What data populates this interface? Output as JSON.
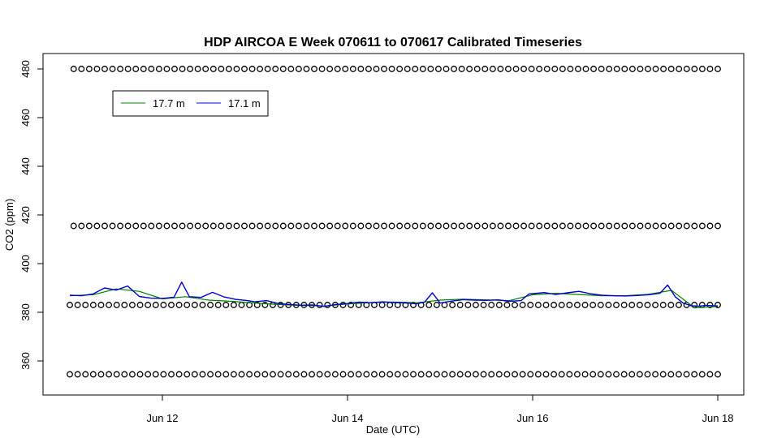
{
  "chart_data": {
    "type": "line",
    "title": "HDP AIRCOA E  Week 070611 to 070617  Calibrated Timeseries",
    "xlabel": "Date (UTC)",
    "ylabel": "CO2 (ppm)",
    "xlim": [
      "2007-06-11T00:00",
      "2007-06-18T00:00"
    ],
    "ylim": [
      348,
      482
    ],
    "x_ticks": [
      {
        "x": "2007-06-12T00:00",
        "label": "Jun 12"
      },
      {
        "x": "2007-06-14T00:00",
        "label": "Jun 14"
      },
      {
        "x": "2007-06-16T00:00",
        "label": "Jun 16"
      },
      {
        "x": "2007-06-18T00:00",
        "label": "Jun 18"
      }
    ],
    "y_ticks": [
      360,
      380,
      400,
      420,
      440,
      460,
      480
    ],
    "grid": false,
    "legend": {
      "position": "top-left",
      "entries": [
        {
          "label": "17.7 m",
          "color": "#008000"
        },
        {
          "label": "17.1 m",
          "color": "#0000cc"
        }
      ]
    },
    "series": [
      {
        "name": "17.7 m",
        "color": "#008000",
        "points": [
          [
            "2007-06-11T00:00",
            386.8
          ],
          [
            "2007-06-11T06:00",
            387.2
          ],
          [
            "2007-06-11T12:00",
            389.6
          ],
          [
            "2007-06-11T18:00",
            388.6
          ],
          [
            "2007-06-12T00:00",
            385.5
          ],
          [
            "2007-06-12T06:00",
            386.4
          ],
          [
            "2007-06-12T12:00",
            385.0
          ],
          [
            "2007-06-12T18:00",
            384.5
          ],
          [
            "2007-06-13T00:00",
            383.8
          ],
          [
            "2007-06-13T06:00",
            383.2
          ],
          [
            "2007-06-13T12:00",
            382.8
          ],
          [
            "2007-06-13T18:00",
            382.6
          ],
          [
            "2007-06-14T00:00",
            383.4
          ],
          [
            "2007-06-14T06:00",
            384.0
          ],
          [
            "2007-06-14T12:00",
            384.2
          ],
          [
            "2007-06-14T18:00",
            383.9
          ],
          [
            "2007-06-15T00:00",
            385.0
          ],
          [
            "2007-06-15T06:00",
            385.4
          ],
          [
            "2007-06-15T12:00",
            385.1
          ],
          [
            "2007-06-15T18:00",
            384.8
          ],
          [
            "2007-06-16T00:00",
            387.2
          ],
          [
            "2007-06-16T06:00",
            387.8
          ],
          [
            "2007-06-16T12:00",
            387.3
          ],
          [
            "2007-06-16T18:00",
            386.8
          ],
          [
            "2007-06-17T00:00",
            386.8
          ],
          [
            "2007-06-17T06:00",
            387.4
          ],
          [
            "2007-06-17T12:00",
            389.0
          ],
          [
            "2007-06-17T18:00",
            381.8
          ],
          [
            "2007-06-18T00:00",
            382.4
          ]
        ]
      },
      {
        "name": "17.1 m",
        "color": "#0000cc",
        "points": [
          [
            "2007-06-11T00:00",
            387.0
          ],
          [
            "2007-06-11T03:00",
            386.8
          ],
          [
            "2007-06-11T06:00",
            387.5
          ],
          [
            "2007-06-11T09:00",
            390.0
          ],
          [
            "2007-06-11T12:00",
            389.1
          ],
          [
            "2007-06-11T15:00",
            390.8
          ],
          [
            "2007-06-11T18:00",
            386.5
          ],
          [
            "2007-06-11T21:00",
            385.8
          ],
          [
            "2007-06-12T00:00",
            385.7
          ],
          [
            "2007-06-12T03:00",
            386.2
          ],
          [
            "2007-06-12T05:00",
            392.4
          ],
          [
            "2007-06-12T07:00",
            386.4
          ],
          [
            "2007-06-12T10:00",
            386.1
          ],
          [
            "2007-06-12T13:00",
            388.2
          ],
          [
            "2007-06-12T16:00",
            386.3
          ],
          [
            "2007-06-12T19:00",
            385.3
          ],
          [
            "2007-06-12T22:00",
            384.8
          ],
          [
            "2007-06-13T00:00",
            384.3
          ],
          [
            "2007-06-13T03:00",
            384.8
          ],
          [
            "2007-06-13T06:00",
            383.6
          ],
          [
            "2007-06-13T09:00",
            383.2
          ],
          [
            "2007-06-13T12:00",
            382.9
          ],
          [
            "2007-06-13T15:00",
            383.0
          ],
          [
            "2007-06-13T18:00",
            382.4
          ],
          [
            "2007-06-13T21:00",
            383.2
          ],
          [
            "2007-06-14T00:00",
            383.6
          ],
          [
            "2007-06-14T03:00",
            384.2
          ],
          [
            "2007-06-14T06:00",
            383.9
          ],
          [
            "2007-06-14T09:00",
            384.3
          ],
          [
            "2007-06-14T12:00",
            384.0
          ],
          [
            "2007-06-14T15:00",
            383.8
          ],
          [
            "2007-06-14T18:00",
            383.5
          ],
          [
            "2007-06-14T20:00",
            384.2
          ],
          [
            "2007-06-14T22:00",
            388.0
          ],
          [
            "2007-06-15T00:00",
            383.8
          ],
          [
            "2007-06-15T03:00",
            384.6
          ],
          [
            "2007-06-15T06:00",
            385.2
          ],
          [
            "2007-06-15T09:00",
            385.0
          ],
          [
            "2007-06-15T12:00",
            384.9
          ],
          [
            "2007-06-15T15:00",
            385.1
          ],
          [
            "2007-06-15T18:00",
            384.5
          ],
          [
            "2007-06-15T21:00",
            384.8
          ],
          [
            "2007-06-15T23:00",
            387.5
          ],
          [
            "2007-06-16T03:00",
            388.1
          ],
          [
            "2007-06-16T06:00",
            387.3
          ],
          [
            "2007-06-16T09:00",
            388.0
          ],
          [
            "2007-06-16T12:00",
            388.6
          ],
          [
            "2007-06-16T15:00",
            387.6
          ],
          [
            "2007-06-16T18:00",
            387.0
          ],
          [
            "2007-06-16T21:00",
            386.8
          ],
          [
            "2007-06-17T00:00",
            386.7
          ],
          [
            "2007-06-17T03:00",
            386.9
          ],
          [
            "2007-06-17T06:00",
            387.2
          ],
          [
            "2007-06-17T09:00",
            387.8
          ],
          [
            "2007-06-17T11:00",
            391.2
          ],
          [
            "2007-06-17T13:00",
            386.3
          ],
          [
            "2007-06-17T15:00",
            383.8
          ],
          [
            "2007-06-17T17:00",
            382.7
          ],
          [
            "2007-06-17T19:00",
            382.5
          ],
          [
            "2007-06-17T21:00",
            382.8
          ],
          [
            "2007-06-18T00:00",
            382.6
          ]
        ]
      }
    ],
    "marker_rows": [
      {
        "y": 480,
        "marker": "circle",
        "x_start": "2007-06-11T01:00",
        "x_end": "2007-06-18T00:00",
        "count": 84
      },
      {
        "y": 415.5,
        "marker": "circle",
        "x_start": "2007-06-11T01:00",
        "x_end": "2007-06-18T00:00",
        "count": 84
      },
      {
        "y": 383,
        "marker": "circle",
        "x_start": "2007-06-11T00:00",
        "x_end": "2007-06-18T00:00",
        "count": 84
      },
      {
        "y": 354.5,
        "marker": "circle",
        "x_start": "2007-06-11T00:00",
        "x_end": "2007-06-18T00:00",
        "count": 84
      }
    ]
  }
}
